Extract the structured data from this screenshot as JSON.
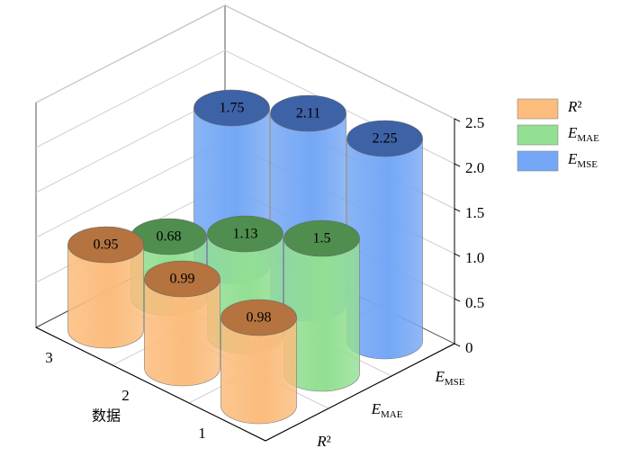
{
  "chart_data": {
    "type": "bar3d",
    "xlabel": "数据",
    "categories": [
      "1",
      "2",
      "3"
    ],
    "series": [
      {
        "name": "R²",
        "color": "#fbbc7c",
        "top_color": "#b4733f",
        "values": [
          0.98,
          0.99,
          0.95
        ]
      },
      {
        "name": "EMAE",
        "color": "#93df93",
        "top_color": "#4f8e4f",
        "values": [
          1.5,
          1.13,
          0.68
        ]
      },
      {
        "name": "EMSE",
        "color": "#74a7f5",
        "top_color": "#3e62a6",
        "values": [
          2.25,
          2.11,
          1.75
        ]
      }
    ],
    "ylim": [
      0,
      2.5
    ],
    "yticks": [
      0,
      0.5,
      {
        "value": 1,
        "label": "1.0"
      },
      1.5,
      {
        "value": 2,
        "label": "2.0"
      },
      2.5
    ],
    "grid": true,
    "legend": "right"
  }
}
